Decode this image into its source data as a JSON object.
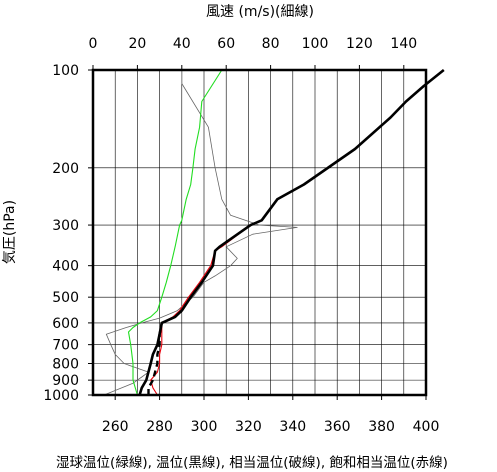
{
  "chart_data": {
    "type": "line",
    "title": "",
    "top_axis": {
      "label": "風速 (m/s)(細線)",
      "range": [
        0,
        150
      ],
      "ticks": [
        0,
        20,
        40,
        60,
        80,
        100,
        120,
        140
      ]
    },
    "bottom_axis": {
      "label": "湿球温位(緑線), 温位(黒線), 相当温位(破線), 飽和相当温位(赤線)",
      "range": [
        250,
        400
      ],
      "ticks": [
        260,
        280,
        300,
        320,
        340,
        360,
        380,
        400
      ]
    },
    "y_axis": {
      "label": "気圧(hPa)",
      "scale": "log",
      "inverted": true,
      "range": [
        1000,
        100
      ],
      "ticks": [
        1000,
        900,
        800,
        700,
        600,
        500,
        400,
        300,
        200,
        100
      ]
    },
    "grid": true,
    "series": [
      {
        "name": "温位",
        "axis": "bottom",
        "color": "#000000",
        "style": "thick",
        "points": [
          [
            271,
            1000
          ],
          [
            272,
            950
          ],
          [
            274,
            900
          ],
          [
            276,
            800
          ],
          [
            277,
            750
          ],
          [
            279,
            700
          ],
          [
            280,
            650
          ],
          [
            281,
            600
          ],
          [
            287,
            575
          ],
          [
            290,
            550
          ],
          [
            294,
            500
          ],
          [
            299,
            450
          ],
          [
            304,
            400
          ],
          [
            305,
            360
          ],
          [
            307,
            350
          ],
          [
            321,
            300
          ],
          [
            326,
            290
          ],
          [
            333,
            250
          ],
          [
            345,
            225
          ],
          [
            368,
            175
          ],
          [
            384,
            140
          ],
          [
            391,
            125
          ],
          [
            399,
            112
          ],
          [
            408,
            100
          ]
        ]
      },
      {
        "name": "相当温位",
        "axis": "bottom",
        "color": "#000000",
        "style": "dashed",
        "points": [
          [
            275,
            1000
          ],
          [
            275,
            950
          ],
          [
            277,
            900
          ],
          [
            279,
            800
          ],
          [
            279,
            750
          ],
          [
            280,
            700
          ],
          [
            280,
            650
          ],
          [
            281,
            600
          ]
        ]
      },
      {
        "name": "飽和相当温位",
        "axis": "bottom",
        "color": "#e8000b",
        "style": "thin",
        "points": [
          [
            279,
            1000
          ],
          [
            277,
            950
          ],
          [
            276,
            900
          ],
          [
            279,
            850
          ],
          [
            280,
            800
          ],
          [
            280,
            750
          ],
          [
            281,
            700
          ],
          [
            281,
            650
          ],
          [
            281,
            600
          ],
          [
            286,
            575
          ],
          [
            289,
            550
          ],
          [
            293,
            500
          ],
          [
            298,
            450
          ],
          [
            303,
            400
          ],
          [
            305,
            360
          ],
          [
            308,
            350
          ],
          [
            321,
            300
          ],
          [
            326,
            290
          ],
          [
            333,
            250
          ],
          [
            345,
            225
          ],
          [
            368,
            175
          ],
          [
            384,
            140
          ],
          [
            391,
            125
          ],
          [
            399,
            112
          ],
          [
            408,
            100
          ]
        ]
      },
      {
        "name": "湿球温位",
        "axis": "bottom",
        "color": "#22dd22",
        "style": "thin",
        "points": [
          [
            270,
            1000
          ],
          [
            268,
            900
          ],
          [
            268,
            800
          ],
          [
            267,
            700
          ],
          [
            266,
            640
          ],
          [
            268,
            620
          ],
          [
            271,
            600
          ],
          [
            276,
            575
          ],
          [
            279,
            550
          ],
          [
            281,
            500
          ],
          [
            283,
            450
          ],
          [
            285,
            400
          ],
          [
            287,
            350
          ],
          [
            289,
            300
          ],
          [
            290,
            290
          ],
          [
            292,
            250
          ],
          [
            294,
            225
          ],
          [
            295,
            200
          ],
          [
            296,
            175
          ],
          [
            298,
            150
          ],
          [
            299,
            125
          ],
          [
            308,
            100
          ]
        ]
      },
      {
        "name": "風速",
        "axis": "top",
        "color": "#666666",
        "style": "hairline",
        "points": [
          [
            5,
            1000
          ],
          [
            13,
            950
          ],
          [
            18,
            920
          ],
          [
            20,
            900
          ],
          [
            22,
            880
          ],
          [
            25,
            850
          ],
          [
            14,
            800
          ],
          [
            10,
            750
          ],
          [
            8,
            700
          ],
          [
            6,
            650
          ],
          [
            15,
            620
          ],
          [
            22,
            600
          ],
          [
            30,
            580
          ],
          [
            38,
            550
          ],
          [
            45,
            500
          ],
          [
            50,
            450
          ],
          [
            55,
            430
          ],
          [
            62,
            400
          ],
          [
            65,
            380
          ],
          [
            60,
            350
          ],
          [
            72,
            320
          ],
          [
            92,
            305
          ],
          [
            75,
            300
          ],
          [
            62,
            280
          ],
          [
            58,
            250
          ],
          [
            55,
            200
          ],
          [
            52,
            150
          ],
          [
            40,
            110
          ],
          [
            40,
            100
          ]
        ]
      }
    ]
  }
}
